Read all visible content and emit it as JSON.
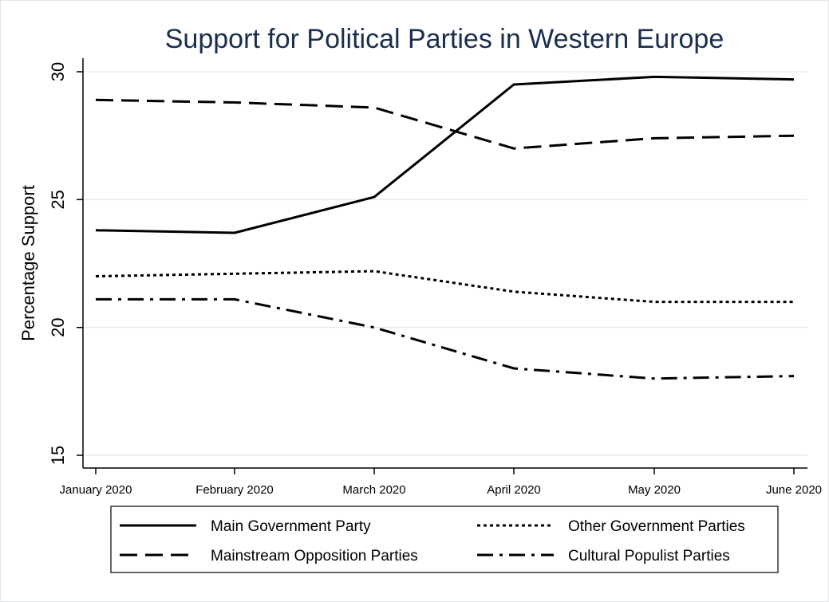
{
  "chart_data": {
    "type": "line",
    "title": "Support for Political Parties in Western Europe",
    "xlabel": "",
    "ylabel": "Percentage Support",
    "categories": [
      "January 2020",
      "February 2020",
      "March 2020",
      "April 2020",
      "May 2020",
      "June 2020"
    ],
    "ylim": [
      15,
      30
    ],
    "yticks": [
      15,
      20,
      25,
      30
    ],
    "grid": true,
    "legend_position": "bottom",
    "series": [
      {
        "name": "Main Government Party",
        "style": "solid",
        "values": [
          23.8,
          23.7,
          25.1,
          29.5,
          29.8,
          29.7
        ]
      },
      {
        "name": "Other Government Parties",
        "style": "dotted",
        "values": [
          22.0,
          22.1,
          22.2,
          21.4,
          21.0,
          21.0
        ]
      },
      {
        "name": "Mainstream Opposition Parties",
        "style": "dashed",
        "values": [
          28.9,
          28.8,
          28.6,
          27.0,
          27.4,
          27.5
        ]
      },
      {
        "name": "Cultural Populist Parties",
        "style": "dashdot",
        "values": [
          21.1,
          21.1,
          20.0,
          18.4,
          18.0,
          18.1
        ]
      }
    ],
    "colors": {
      "line": "#000000",
      "title": "#1a2e4f",
      "grid": "#e6edf0"
    }
  }
}
